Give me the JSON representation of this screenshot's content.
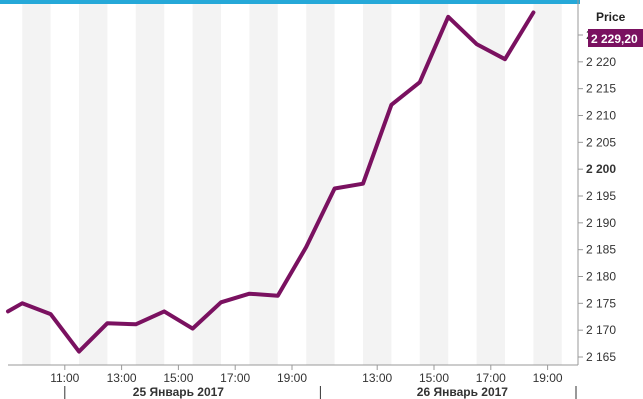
{
  "colors": {
    "line": "#7a1160",
    "band": "#f3f3f3",
    "cutoff_strip": "#25a8d8",
    "last_price_bg": "#7a1160",
    "axis": "#999999"
  },
  "chart_data": {
    "type": "line",
    "y_axis_title": "Price",
    "last_price_label": "2 229,20",
    "ylim": [
      2162.5,
      2233
    ],
    "grid": false,
    "y_ticks": [
      {
        "value": 2225,
        "label": "2 225"
      },
      {
        "value": 2220,
        "label": "2 220"
      },
      {
        "value": 2215,
        "label": "2 215"
      },
      {
        "value": 2210,
        "label": "2 210"
      },
      {
        "value": 2205,
        "label": "2 205"
      },
      {
        "value": 2200,
        "label": "2 200",
        "bold": true
      },
      {
        "value": 2195,
        "label": "2 195"
      },
      {
        "value": 2190,
        "label": "2 190"
      },
      {
        "value": 2185,
        "label": "2 185"
      },
      {
        "value": 2180,
        "label": "2 180"
      },
      {
        "value": 2175,
        "label": "2 175"
      },
      {
        "value": 2170,
        "label": "2 170"
      },
      {
        "value": 2165,
        "label": "2 165"
      }
    ],
    "x_ticks": [
      {
        "index": 1.5,
        "label": "11:00"
      },
      {
        "index": 3.5,
        "label": "13:00"
      },
      {
        "index": 5.5,
        "label": "15:00"
      },
      {
        "index": 7.5,
        "label": "17:00"
      },
      {
        "index": 9.5,
        "label": "19:00"
      },
      {
        "index": 12.5,
        "label": "13:00"
      },
      {
        "index": 14.5,
        "label": "15:00"
      },
      {
        "index": 16.5,
        "label": "17:00"
      },
      {
        "index": 18.5,
        "label": "19:00"
      }
    ],
    "date_labels": [
      {
        "index": 5.5,
        "label": "25 Январь 2017"
      },
      {
        "index": 15.5,
        "label": "26 Январь 2017"
      }
    ],
    "date_separators": [
      1.5,
      10.5,
      19.5
    ],
    "band_ranges": [
      [
        0,
        1
      ],
      [
        2,
        3
      ],
      [
        4,
        5
      ],
      [
        6,
        7
      ],
      [
        8,
        9
      ],
      [
        10,
        11
      ],
      [
        12,
        13
      ],
      [
        14,
        15
      ],
      [
        16,
        17
      ],
      [
        18,
        19
      ]
    ],
    "x_range": [
      -0.5,
      19.5
    ],
    "series": [
      {
        "x": [
          -0.5,
          0,
          1,
          2,
          3,
          4,
          5,
          6,
          7,
          8,
          9,
          10,
          11,
          12,
          13,
          14,
          15,
          16,
          17,
          18
        ],
        "values": [
          2173.5,
          2175,
          2173,
          2166,
          2171.3,
          2171.1,
          2173.5,
          2170.3,
          2175.2,
          2176.8,
          2176.4,
          2185.5,
          2196.4,
          2197.3,
          2212,
          2216.2,
          2228.4,
          2223.3,
          2220.5,
          2229.2
        ]
      }
    ]
  }
}
